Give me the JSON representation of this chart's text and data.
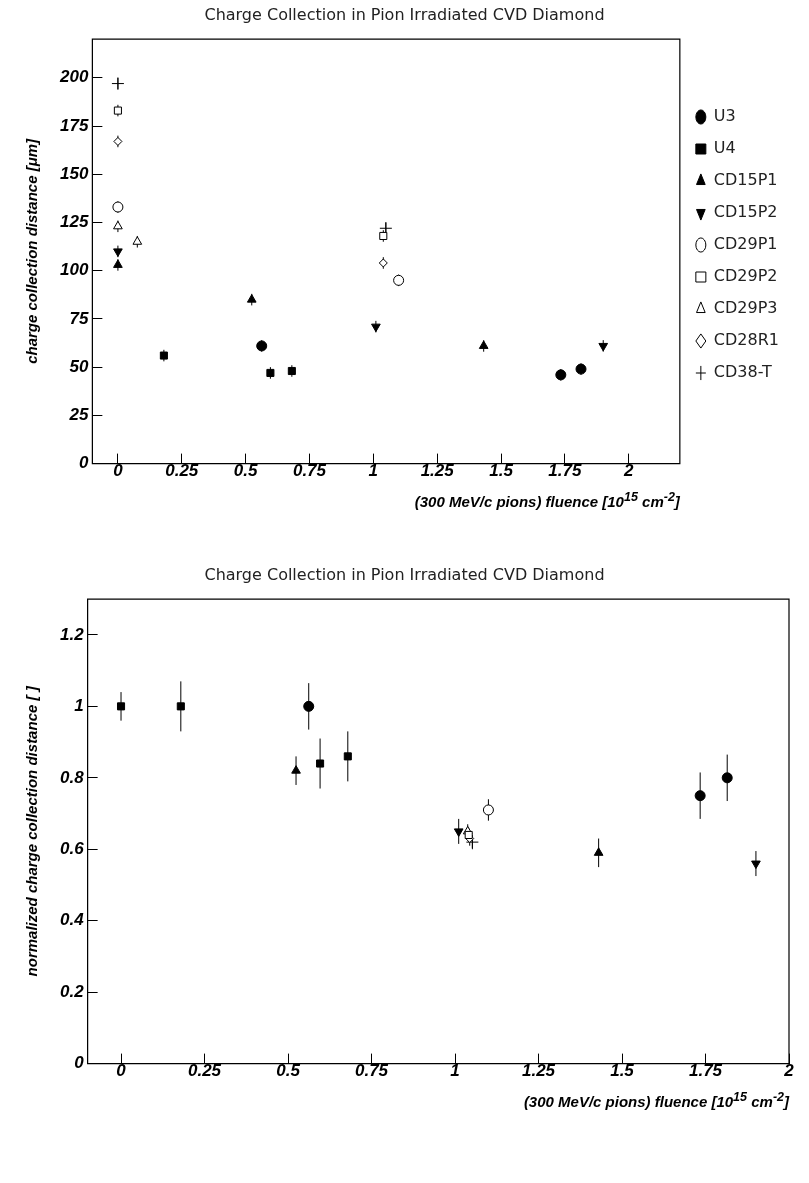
{
  "chart_data": [
    {
      "type": "scatter",
      "title": "Charge Collection in Pion Irradiated CVD Diamond",
      "xlabel": "(300 MeV/c pions) fluence [10$^{15}$ cm$^{-2}$]",
      "ylabel": "charge collection distance [μm]",
      "xlim": [
        -0.1,
        2.2
      ],
      "ylim": [
        0,
        220
      ],
      "xticks": [
        0,
        0.25,
        0.5,
        0.75,
        1,
        1.25,
        1.5,
        1.75,
        2
      ],
      "yticks": [
        0,
        25,
        50,
        75,
        100,
        125,
        150,
        175,
        200
      ],
      "grid": false,
      "legend": "right",
      "series": [
        {
          "name": "U3",
          "color": "#000000",
          "marker": "circle",
          "x": [
            0.563,
            1.734,
            1.813
          ],
          "values": [
            61,
            46,
            49
          ],
          "errors": [
            3,
            3,
            3
          ]
        },
        {
          "name": "U4",
          "color": "#000000",
          "marker": "square",
          "x": [
            0.18,
            0.597,
            0.681
          ],
          "values": [
            56,
            47,
            48
          ],
          "errors": [
            3,
            3,
            3
          ]
        },
        {
          "name": "CD15P1",
          "color": "#000000",
          "marker": "triangle",
          "x": [
            0,
            0.524,
            1.432
          ],
          "values": [
            103,
            85,
            61
          ],
          "errors": [
            3,
            3,
            3
          ]
        },
        {
          "name": "CD15P2",
          "color": "#000000",
          "marker": "triangle-down",
          "x": [
            0,
            1.01,
            1.9
          ],
          "values": [
            110,
            71,
            61
          ],
          "errors": [
            3,
            3,
            3
          ]
        },
        {
          "name": "CD29P1",
          "color": "#000000",
          "marker": "circle-open",
          "x": [
            0,
            1.099
          ],
          "values": [
            133,
            95
          ],
          "errors": [
            3,
            3
          ]
        },
        {
          "name": "CD29P2",
          "color": "#000000",
          "marker": "square-open",
          "x": [
            0,
            1.039
          ],
          "values": [
            183,
            118
          ],
          "errors": [
            3,
            3
          ]
        },
        {
          "name": "CD29P3",
          "color": "#000000",
          "marker": "triangle-open",
          "x": [
            0,
            0.076
          ],
          "values": [
            123,
            115
          ],
          "errors": [
            3,
            3
          ]
        },
        {
          "name": "CD28R1",
          "color": "#000000",
          "marker": "diamond-open",
          "x": [
            0,
            1.039
          ],
          "values": [
            167,
            104
          ],
          "errors": [
            3,
            3
          ]
        },
        {
          "name": "CD38-T",
          "color": "#000000",
          "marker": "cross-open",
          "x": [
            0,
            1.049
          ],
          "values": [
            197,
            122
          ],
          "errors": [
            3,
            3
          ]
        }
      ]
    },
    {
      "type": "scatter",
      "title": "Charge Collection in Pion Irradiated CVD Diamond",
      "xlabel": "(300 MeV/c pions) fluence [10$^{15}$ cm$^{-2}$]",
      "ylabel": "normalized charge collection distance [ ]",
      "xlim": [
        -0.1,
        2
      ],
      "ylim": [
        0,
        1.3
      ],
      "xticks": [
        0,
        0.25,
        0.5,
        0.75,
        1,
        1.25,
        1.5,
        1.75,
        2
      ],
      "yticks": [
        0,
        0.2,
        0.4,
        0.6,
        0.8,
        1,
        1.2
      ],
      "grid": false,
      "series": [
        {
          "color": "#000000",
          "marker": "circle",
          "x": [
            0.562,
            1.734,
            1.815
          ],
          "values": [
            1.0,
            0.75,
            0.8
          ],
          "errors": [
            0.065,
            0.065,
            0.065
          ]
        },
        {
          "color": "#000000",
          "marker": "square",
          "x": [
            0,
            0.179,
            0.596,
            0.679
          ],
          "values": [
            1.0,
            1.0,
            0.84,
            0.86
          ],
          "errors": [
            0.04,
            0.07,
            0.07,
            0.07
          ]
        },
        {
          "color": "#000000",
          "marker": "triangle",
          "x": [
            0.524,
            1.43
          ],
          "values": [
            0.82,
            0.59
          ],
          "errors": [
            0.04,
            0.04
          ]
        },
        {
          "color": "#000000",
          "marker": "triangle-down",
          "x": [
            1.011,
            1.901
          ],
          "values": [
            0.65,
            0.56
          ],
          "errors": [
            0.035,
            0.035
          ]
        },
        {
          "color": "#000000",
          "marker": "circle-open",
          "x": [
            1.1
          ],
          "values": [
            0.71
          ],
          "errors": [
            0.03
          ]
        },
        {
          "color": "#000000",
          "marker": "square-open",
          "x": [
            1.041
          ],
          "values": [
            0.64
          ],
          "errors": [
            0.02
          ]
        },
        {
          "color": "#000000",
          "marker": "triangle-open",
          "x": [
            1.038
          ],
          "values": [
            0.65
          ],
          "errors": [
            0.02
          ]
        },
        {
          "color": "#000000",
          "marker": "diamond-open",
          "x": [
            1.044
          ],
          "values": [
            0.63
          ],
          "errors": [
            0.02
          ]
        },
        {
          "color": "#000000",
          "marker": "cross-open",
          "x": [
            1.052
          ],
          "values": [
            0.62
          ],
          "errors": [
            0.02
          ]
        }
      ]
    }
  ]
}
